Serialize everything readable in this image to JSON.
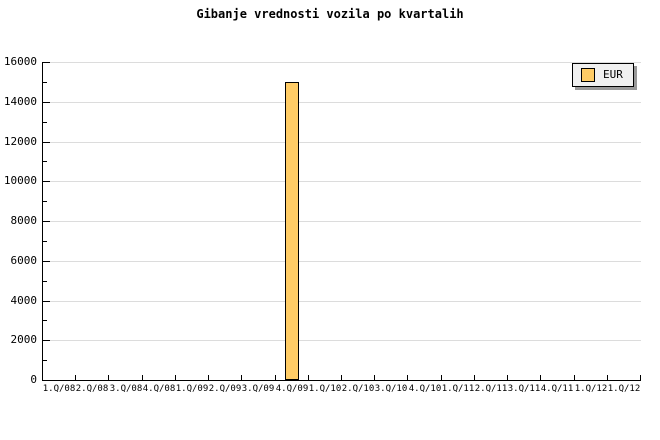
{
  "chart_data": {
    "type": "bar",
    "title": "Gibanje vrednosti vozila po kvartalih",
    "categories": [
      "1.Q/08",
      "2.Q/08",
      "3.Q/08",
      "4.Q/08",
      "1.Q/09",
      "2.Q/09",
      "3.Q/09",
      "4.Q/09",
      "1.Q/10",
      "2.Q/10",
      "3.Q/10",
      "4.Q/10",
      "1.Q/11",
      "2.Q/11",
      "3.Q/11",
      "4.Q/11",
      "1.Q/12",
      "1.Q/12"
    ],
    "series": [
      {
        "name": "EUR",
        "values": [
          0,
          0,
          0,
          0,
          0,
          0,
          0,
          15000,
          0,
          0,
          0,
          0,
          0,
          0,
          0,
          0,
          0,
          0
        ]
      }
    ],
    "xlabel": "",
    "ylabel": "",
    "ylim": [
      0,
      16000
    ],
    "ytick_step": 2000,
    "ytick_minor_step": 1000,
    "grid": "horizontal-major",
    "legend_position": "top-right",
    "colors": {
      "bar_fill": "#FFCC66",
      "bar_border": "#000000",
      "gridline": "#DCDCDC",
      "axis": "#000000",
      "text": "#000000",
      "legend_bg": "#F0F0F0",
      "legend_shadow": "#999999",
      "background": "#FFFFFF"
    }
  }
}
